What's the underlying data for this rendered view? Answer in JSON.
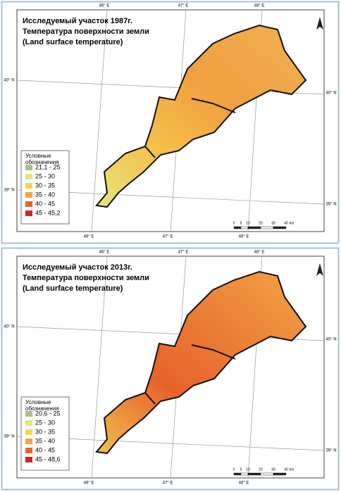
{
  "panels": [
    {
      "title_lines": [
        "Исследуемый участок 1987г.",
        "Температура поверхности земли",
        "(Land surface temperature)"
      ],
      "legend_title": [
        "Условные",
        "обозначения"
      ],
      "legend": [
        {
          "label": "21,1 - 25",
          "color": "#a9bf8c"
        },
        {
          "label": "25 - 30",
          "color": "#e6e67c"
        },
        {
          "label": "30 - 35",
          "color": "#f4d44c"
        },
        {
          "label": "35 - 40",
          "color": "#f0a642"
        },
        {
          "label": "40 - 45",
          "color": "#e8622c"
        },
        {
          "label": "45 - 45,2",
          "color": "#d42222"
        }
      ],
      "lon_labels": [
        "46° E",
        "47° E",
        "48° E"
      ],
      "lat_labels": [
        "40° N",
        "39° N"
      ],
      "scale_labels": [
        "0",
        "5",
        "10",
        "20",
        "30",
        "40",
        "km"
      ]
    },
    {
      "title_lines": [
        "Исследуемый участок 2013г.",
        "Температура поверхности земли",
        "(Land surface temperature)"
      ],
      "legend_title": [
        "Условные",
        "обозначения"
      ],
      "legend": [
        {
          "label": "20,6 - 25",
          "color": "#a9bf8c"
        },
        {
          "label": "25 - 30",
          "color": "#e6e67c"
        },
        {
          "label": "30 - 35",
          "color": "#f4d44c"
        },
        {
          "label": "35 - 40",
          "color": "#f0a642"
        },
        {
          "label": "40 - 45",
          "color": "#e8622c"
        },
        {
          "label": "45 - 48,6",
          "color": "#d42222"
        }
      ],
      "lon_labels": [
        "46° E",
        "47° E",
        "48° E"
      ],
      "lat_labels": [
        "40° N",
        "39° N"
      ],
      "scale_labels": [
        "0",
        "5",
        "10",
        "20",
        "30",
        "40",
        "km"
      ]
    }
  ]
}
